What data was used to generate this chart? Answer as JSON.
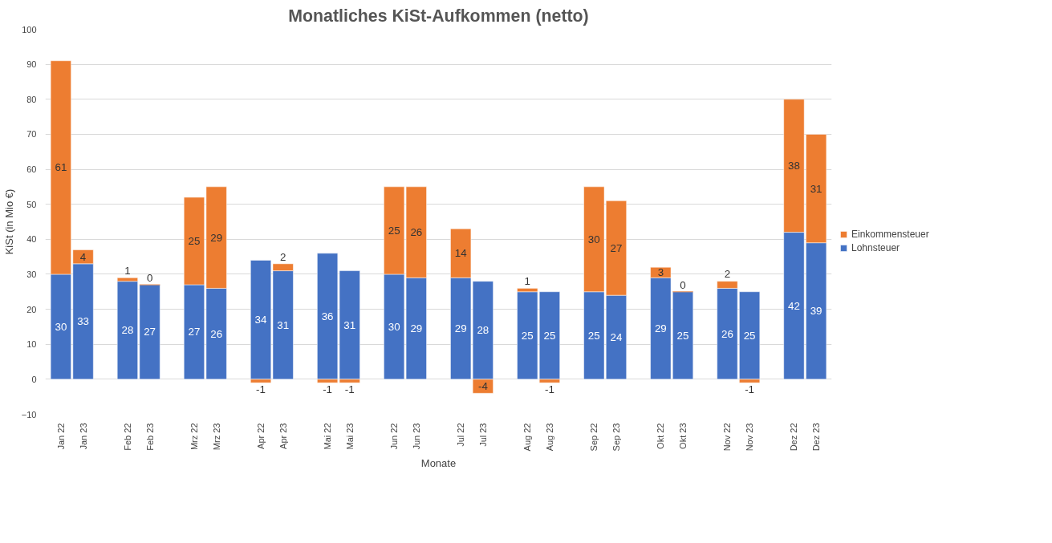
{
  "chart_data": {
    "type": "bar",
    "title": "Monatliches KiSt-Aufkommen (netto)",
    "xlabel": "Monate",
    "ylabel": "KiSt (in Mio €)",
    "categories": [
      "Jan 22",
      "Jan 23",
      null,
      "Feb 22",
      "Feb 23",
      null,
      "Mrz 22",
      "Mrz 23",
      null,
      "Apr 22",
      "Apr 23",
      null,
      "Mai 22",
      "Mai 23",
      null,
      "Jun 22",
      "Jun 23",
      null,
      "Jul 22",
      "Jul 23",
      null,
      "Aug 22",
      "Aug 23",
      null,
      "Sep 22",
      "Sep 23",
      null,
      "Okt 22",
      "Okt 23",
      null,
      "Nov 22",
      "Nov 23",
      null,
      "Dez 22",
      "Dez 23"
    ],
    "series": [
      {
        "name": "Lohnsteuer",
        "color": "#4472c4",
        "values": [
          30,
          33,
          null,
          28,
          27,
          null,
          27,
          26,
          null,
          34,
          31,
          null,
          36,
          31,
          null,
          30,
          29,
          null,
          29,
          28,
          null,
          25,
          25,
          null,
          25,
          24,
          null,
          29,
          25,
          null,
          26,
          25,
          null,
          42,
          39
        ]
      },
      {
        "name": "Einkommensteuer",
        "color": "#ed7d31",
        "values": [
          61,
          4,
          null,
          1,
          0,
          null,
          25,
          29,
          null,
          -1,
          2,
          null,
          -1,
          -1,
          null,
          25,
          26,
          null,
          14,
          -4,
          null,
          1,
          -1,
          null,
          30,
          27,
          null,
          3,
          0,
          null,
          2,
          -1,
          null,
          38,
          31
        ]
      }
    ],
    "stacked": true,
    "data_labels": true,
    "ylim": [
      -10,
      100
    ],
    "yticks": [
      -10,
      0,
      10,
      20,
      30,
      40,
      50,
      60,
      70,
      80,
      90,
      100
    ],
    "grid": "y",
    "legend": "right"
  }
}
